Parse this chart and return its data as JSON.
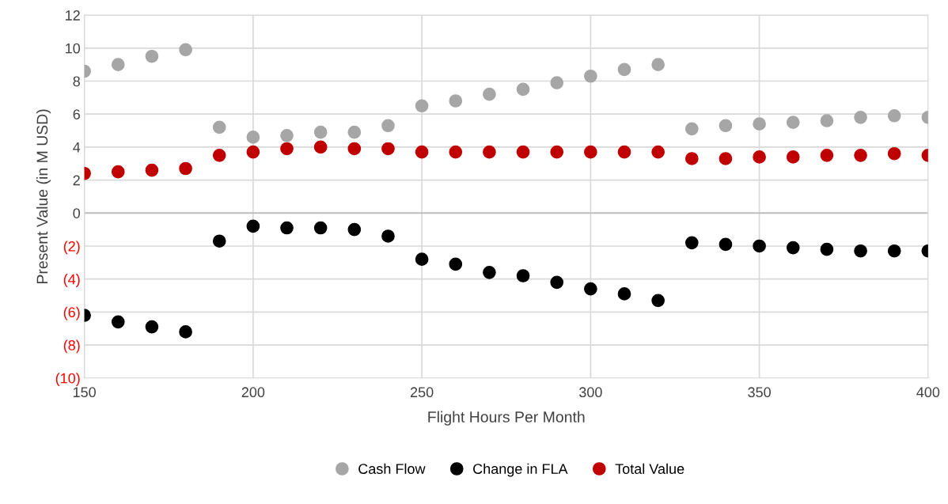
{
  "chart_data": {
    "type": "scatter",
    "xlabel": "Flight Hours Per Month",
    "ylabel": "Present Value (in M USD)",
    "x": [
      150,
      160,
      170,
      180,
      190,
      200,
      210,
      220,
      230,
      240,
      250,
      260,
      270,
      280,
      290,
      300,
      310,
      320,
      330,
      340,
      350,
      360,
      370,
      380,
      390,
      400
    ],
    "series": [
      {
        "name": "Cash Flow",
        "color": "#a6a6a6",
        "values": [
          8.6,
          9.0,
          9.5,
          9.9,
          5.2,
          4.6,
          4.7,
          4.9,
          4.9,
          5.3,
          6.5,
          6.8,
          7.2,
          7.5,
          7.9,
          8.3,
          8.7,
          9.0,
          5.1,
          5.3,
          5.4,
          5.5,
          5.6,
          5.8,
          5.9,
          5.8
        ]
      },
      {
        "name": "Change in FLA",
        "color": "#000000",
        "values": [
          -6.2,
          -6.6,
          -6.9,
          -7.2,
          -1.7,
          -0.8,
          -0.9,
          -0.9,
          -1.0,
          -1.4,
          -2.8,
          -3.1,
          -3.6,
          -3.8,
          -4.2,
          -4.6,
          -4.9,
          -5.3,
          -1.8,
          -1.9,
          -2.0,
          -2.1,
          -2.2,
          -2.3,
          -2.3,
          -2.3
        ]
      },
      {
        "name": "Total Value",
        "color": "#c00000",
        "values": [
          2.4,
          2.5,
          2.6,
          2.7,
          3.5,
          3.7,
          3.9,
          4.0,
          3.9,
          3.9,
          3.7,
          3.7,
          3.7,
          3.7,
          3.7,
          3.7,
          3.7,
          3.7,
          3.3,
          3.3,
          3.4,
          3.4,
          3.5,
          3.5,
          3.6,
          3.5
        ]
      }
    ],
    "xlim": [
      150,
      400
    ],
    "xticks": [
      150,
      200,
      250,
      300,
      350,
      400
    ],
    "ylim": [
      -10,
      12
    ],
    "yticks": [
      {
        "value": -10,
        "label": "(10)"
      },
      {
        "value": -8,
        "label": "(8)"
      },
      {
        "value": -6,
        "label": "(6)"
      },
      {
        "value": -4,
        "label": "(4)"
      },
      {
        "value": -2,
        "label": "(2)"
      },
      0,
      2,
      4,
      6,
      8,
      10,
      12
    ],
    "grid": true,
    "legend": "bottom",
    "marker": "circle"
  }
}
